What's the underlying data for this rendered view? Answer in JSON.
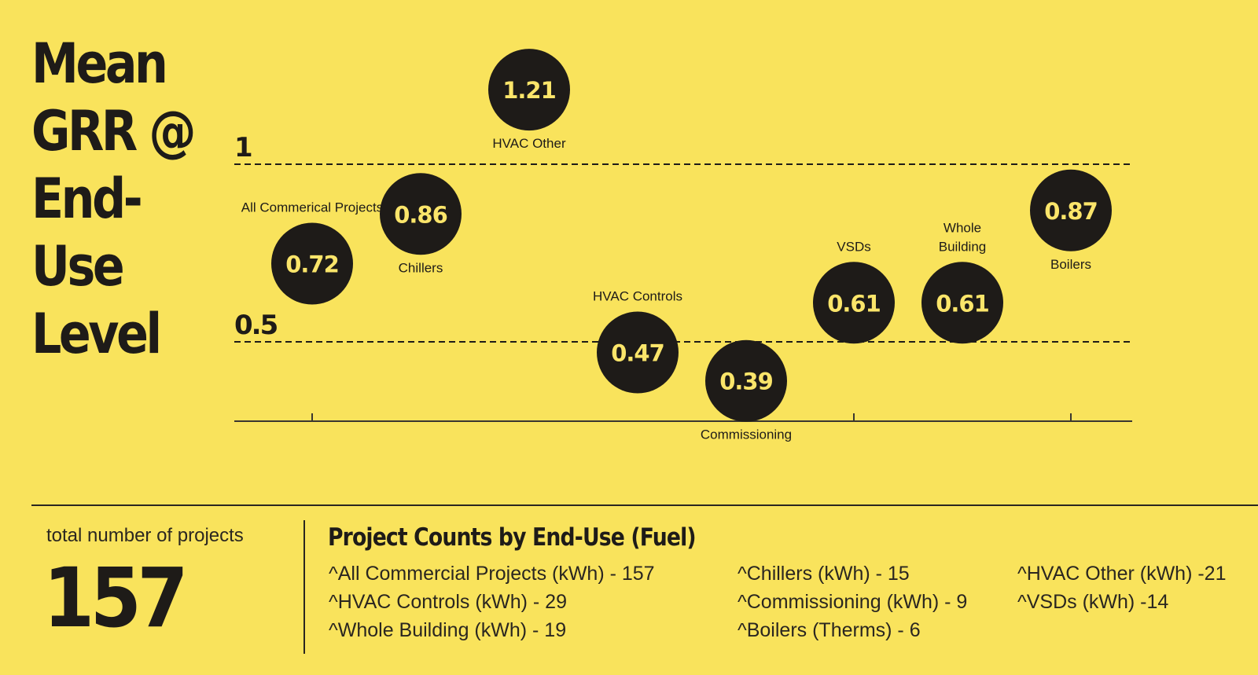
{
  "title": {
    "lines": [
      "Mean",
      "GRR @",
      "End-",
      "Use",
      "Level"
    ]
  },
  "chart_data": {
    "type": "scatter",
    "title": "Mean GRR @ End-Use Level",
    "yticks": [
      "1",
      "0.5"
    ],
    "ytick_values": [
      1,
      0.5
    ],
    "gridlines": "dashed at 1 and 0.5",
    "points": [
      {
        "name": "All Commerical Projects",
        "value": 0.72,
        "display": "0.72",
        "label_pos": "above"
      },
      {
        "name": "Chillers",
        "value": 0.86,
        "display": "0.86",
        "label_pos": "below"
      },
      {
        "name": "HVAC Other",
        "value": 1.21,
        "display": "1.21",
        "label_pos": "below"
      },
      {
        "name": "HVAC Controls",
        "value": 0.47,
        "display": "0.47",
        "label_pos": "above"
      },
      {
        "name": "Commissioning",
        "value": 0.39,
        "display": "0.39",
        "label_pos": "below"
      },
      {
        "name": "VSDs",
        "value": 0.61,
        "display": "0.61",
        "label_pos": "above"
      },
      {
        "name": "Whole\nBuilding",
        "value": 0.61,
        "display": "0.61",
        "label_pos": "above"
      },
      {
        "name": "Boilers",
        "value": 0.87,
        "display": "0.87",
        "label_pos": "below"
      }
    ]
  },
  "summary": {
    "total_label": "total number of projects",
    "total_value": "157",
    "counts_title": "Project Counts by End-Use (Fuel)",
    "counts": [
      "^All Commercial Projects (kWh)  - 157",
      "^Chillers (kWh) - 15",
      "^HVAC Other (kWh) -21",
      "^HVAC Controls (kWh) - 29",
      "^Commissioning (kWh) - 9",
      "^VSDs (kWh) -14",
      "^Whole Building (kWh) - 19",
      "^Boilers (Therms) - 6"
    ]
  },
  "colors": {
    "background": "#f9e35c",
    "circle": "#1e1b18",
    "circle_text": "#fbe56a",
    "ink": "#1e1b18"
  }
}
